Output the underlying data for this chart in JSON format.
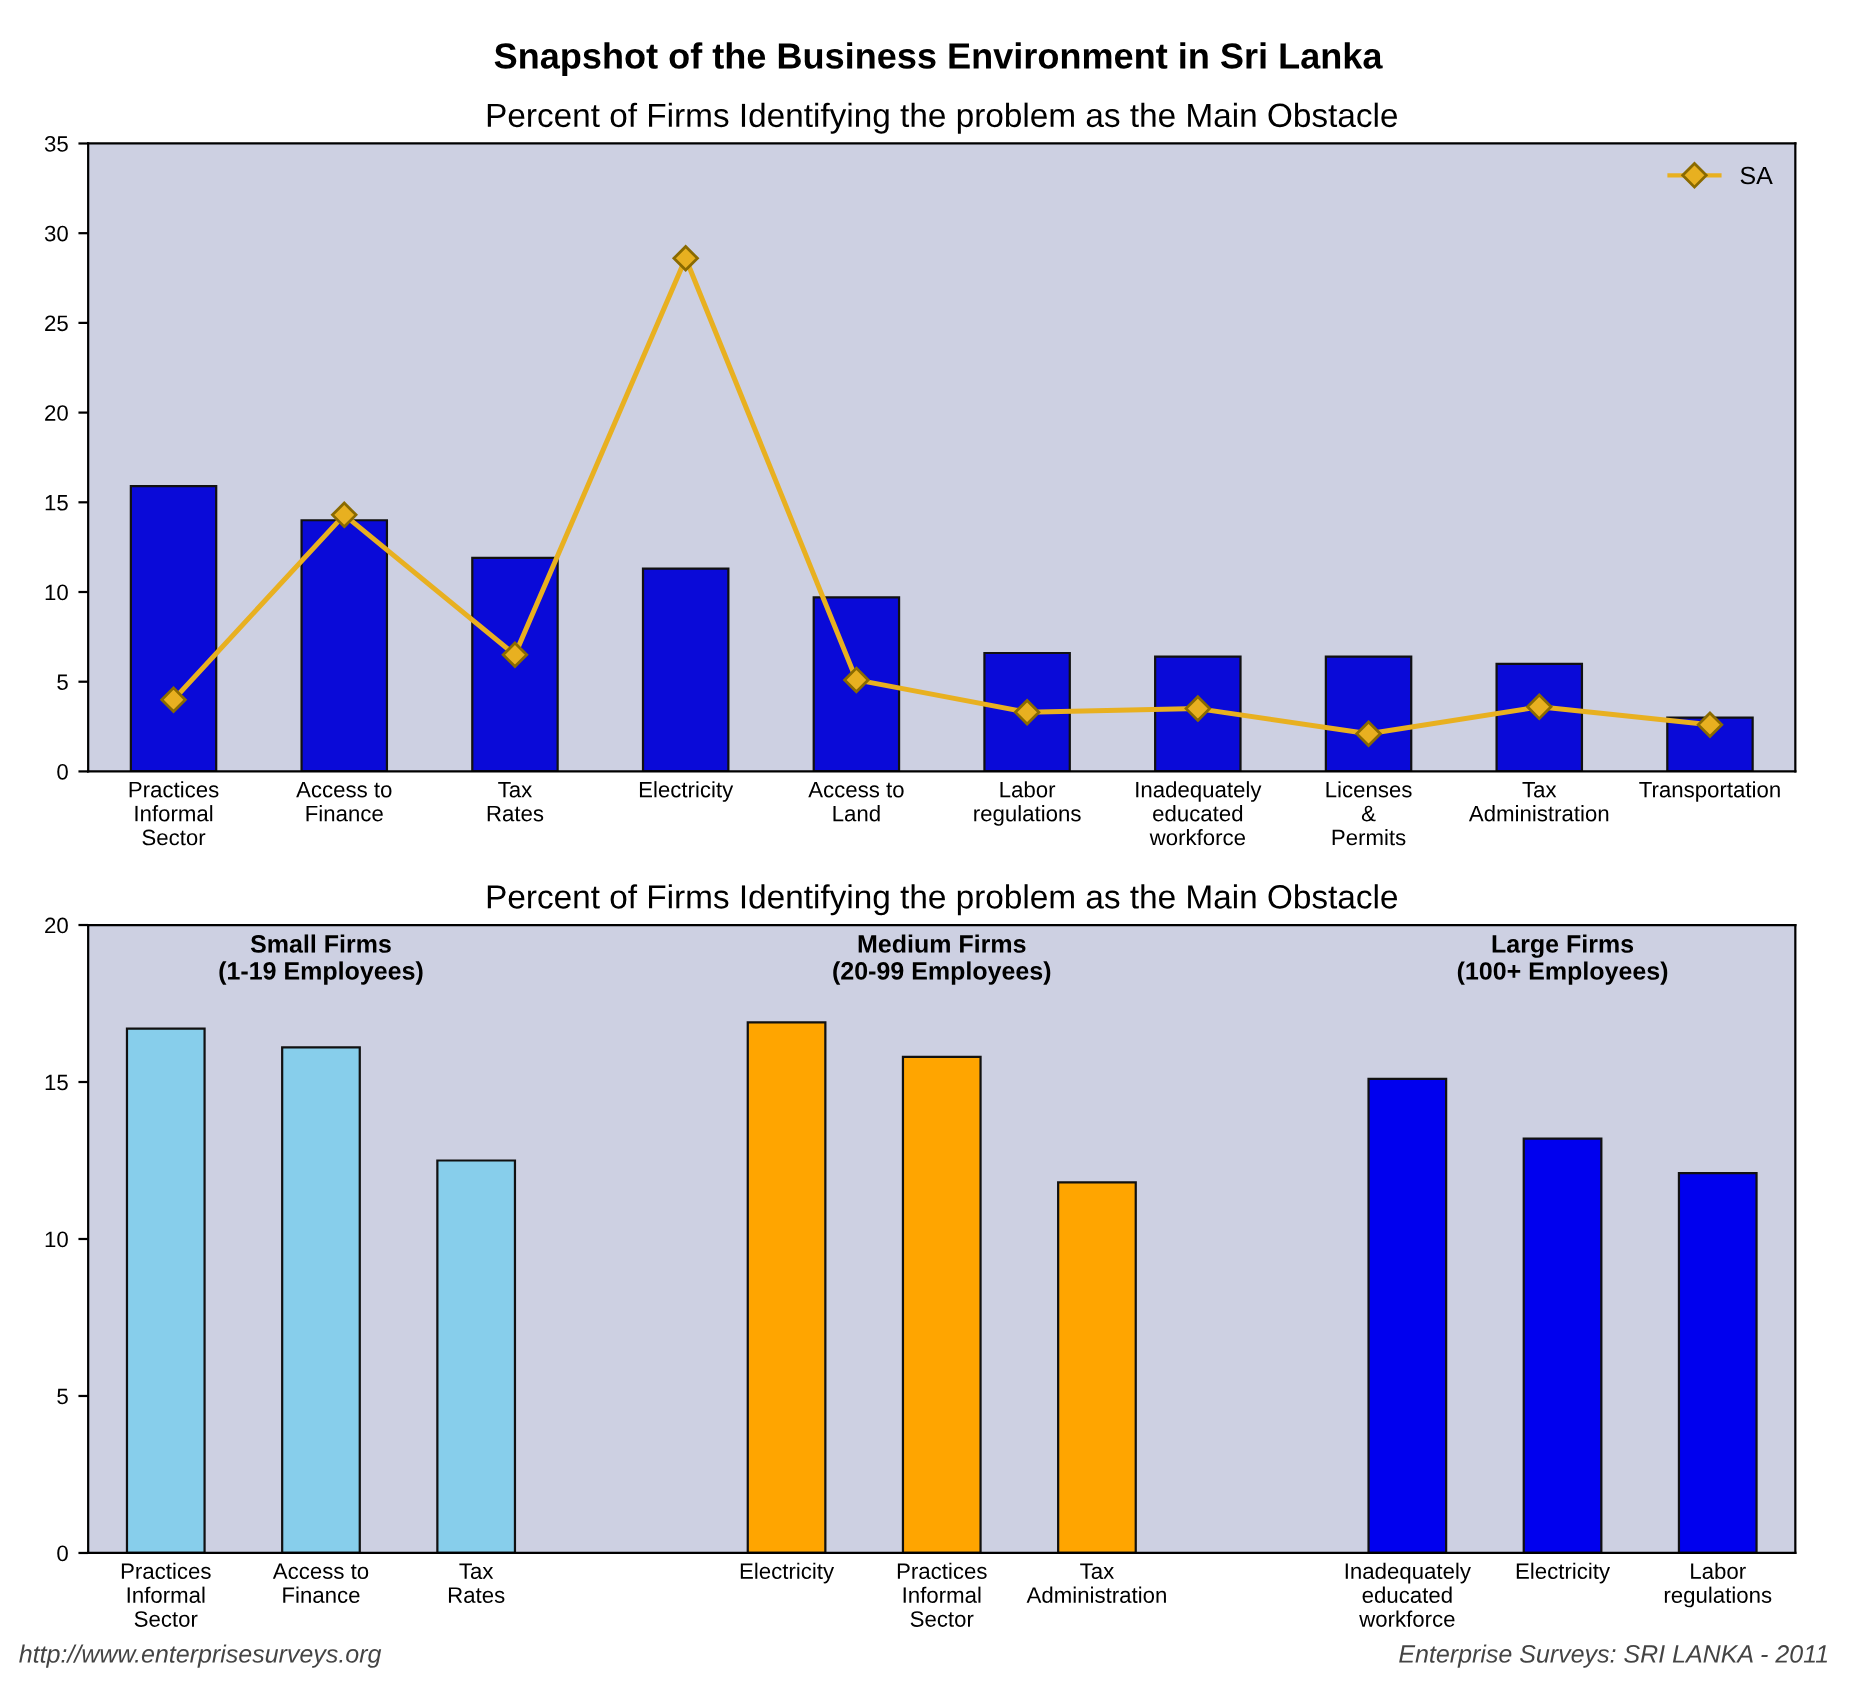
{
  "chart_data": [
    {
      "type": "bar",
      "title": "Percent of Firms Identifying the problem as the Main Obstacle",
      "annotations": [
        "Snapshot of the Business Environment in Sri Lanka"
      ],
      "categories": [
        "Practices\nInformal\nSector",
        "Access to\nFinance",
        "Tax\nRates",
        "Electricity",
        "Access to\nLand",
        "Labor\nregulations",
        "Inadequately\neducated\nworkforce",
        "Licenses\n&\nPermits",
        "Tax\nAdministration",
        "Transportation"
      ],
      "series": [
        {
          "type": "bar",
          "color": "#0a0ad8",
          "values": [
            15.9,
            14.0,
            11.9,
            11.3,
            9.7,
            6.6,
            6.4,
            6.4,
            6.0,
            3.0
          ]
        },
        {
          "type": "line",
          "name": "SA",
          "color": "#e8b020",
          "marker": "diamond",
          "values": [
            4.0,
            14.3,
            6.5,
            28.6,
            5.1,
            3.3,
            3.5,
            2.1,
            3.6,
            2.6
          ]
        }
      ],
      "ylim": [
        0,
        35
      ],
      "yticks": [
        0,
        5,
        10,
        15,
        20,
        25,
        30,
        35
      ],
      "grid": false,
      "legend": "top right"
    },
    {
      "type": "bar",
      "title": "Percent of Firms Identifying the problem as the Main Obstacle",
      "annotations": [
        "Small Firms\n(1-19 Employees)",
        "Medium Firms\n(20-99 Employees)",
        "Large Firms\n(100+ Employees)",
        "http://www.enterprisesurveys.org",
        "Enterprise Surveys: SRI LANKA - 2011"
      ],
      "categories": [
        "Practices\nInformal\nSector",
        "Access to\nFinance",
        "Tax\nRates",
        null,
        "Electricity",
        "Practices\nInformal\nSector",
        "Tax\nAdministration",
        null,
        "Inadequately\neducated\nworkforce",
        "Electricity",
        "Labor\nregulations"
      ],
      "values": [
        16.7,
        16.1,
        12.5,
        null,
        16.9,
        15.8,
        11.8,
        null,
        15.1,
        13.2,
        12.1
      ],
      "colors": [
        "#87ceeb",
        "#87ceeb",
        "#87ceeb",
        null,
        "#ffa500",
        "#ffa500",
        "#ffa500",
        null,
        "#0000ee",
        "#0000ee",
        "#0000ee"
      ],
      "ylim": [
        0,
        20
      ],
      "yticks": [
        0,
        5,
        10,
        15,
        20
      ],
      "grid": false
    }
  ]
}
